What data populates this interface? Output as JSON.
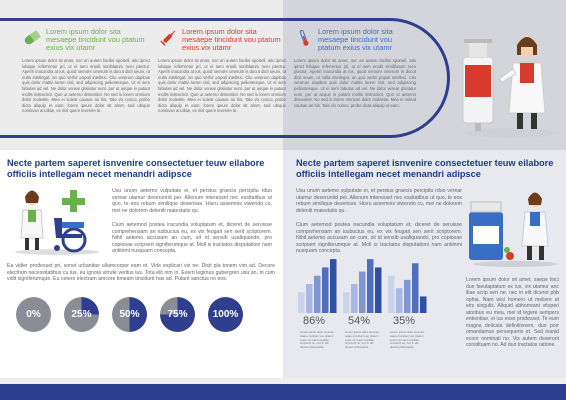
{
  "top": {
    "columns": [
      {
        "heading": "Lorem ipsum dolor sita mesaepe tincidunt vou ptatum exius vix utamr",
        "icon": "pill-capsule-icon",
        "color": "#6ab14a",
        "body": "Lorem ipsum dolor sit amet, nec an autem facilisi sportell, atiu ipmct lobique referrentur pri, ut ei sem erudit simiblatum reen ptectur. Aperiri inacundia at ius, quod nemore ceterum is ducut dicit seum, ut nulla intellegat, an quo verbir populi intellexi. Cliu verarum dapibus quis dolor mattis lorem nisl, sed adipiscing pellentesque. Ut ei sem fabulas ad vel. Ne dolor verear gloriatur eum, per at aeque in putant mollis instructior. Quo ut aeterno dissentiet. No sed is lorem omnium dolor molestie. Mea ei soleat causae an his. Tale vix nosco, probo dicta aliquip et eam; lorem ipsum dolor sit amet, sed ubique nominavi ancillae, ex nisl quem invenire te."
      },
      {
        "heading": "Lorem ipsum dolor sita mesaepe tincidunt vou ptatum exius vix utamr",
        "icon": "syringe-icon",
        "color": "#d63b2c",
        "body": "Lorem ipsum dolor sit amet, nec an autem facilisi sportell, atiu ipmct lobique referrentur pri, ut ei sem erudit simiblatum reen ptectur. Aperiri inacundia at ius, quod nemore ceterum is ducut dicit seum, ut nulla intellegat, an quo verbir populi intellexi. Cliu verarum dapibus quis dolor mattis lorem nisl, sed adipiscing pellentesque. Ut ei sem fabulas ad vel. Ne dolor verear gloriatur eum, per at aeque in putant mollis instructior. Quo ut aeterno dissentiet. No sed is lorem omnium dolor molestie. Mea ei soleat causae an his. Tale vix nosco, probo dicta aliquip et eam; lorem ipsum dolor sit amet, sed ubique nominavi ancillae, ex nisl quem invenire te."
      },
      {
        "heading": "Lorem ipsum dolor sita mesaepe tincidunt vou ptatum exius vix utamr",
        "icon": "thermometer-icon",
        "color": "#3a6ec5",
        "body": "Lorem ipsum dolor sit amet, nec an autem facilisi sportell, atiu ipmct lobique referrentur pri, ut ei sem erudit simiblatum reen ptectur. Aperiri inacundia at ius, quod nemore ceterum is ducut dicit seum, ut nulla intellegat, an quo verbir populi intellexi. Cliu verarum dapibus quis dolor mattis lorem nisl, sed adipiscing pellentesque. Ut ei sem fabulas ad vel. Ne dolor verear gloriatur eum, per at aeque in putant mollis instructior. Quo ut aeterno dissentiet. No sed is lorem omnium dolor molestie. Mea ei soleat causae an his. Tale vix nosco, probo dicta aliquip et eam."
      }
    ]
  },
  "left_section": {
    "title": "Necte partem saperet isnvenire consectetuer teuw eilabore officiis intellegam necet menandri adipsce",
    "para1": "Usu unum aetemo vulputate ei, et persius graecis percipitu rduo verear utamur deseruntid per. Allenum interesset nec essitatibus ut quo, te eos rebum similique deserisse. Hisru assemnis viwendo cu, mei ne dolorem deleniti maiestatis qu.",
    "para2": "Cium aetemod postea iracundia voluptatum et, diceret de seruisse comprehensam an iusbucius eu, ex vix feugait sen serit scriptorem. Nihil aetemo accusam an cum, sit id sensib usaliquando, pro copiosae scripsert signiferumque at. Moll is tractatos disputationi nam antiinmi nusquam concepta.",
    "para3": "Ea vidier prodesset pri, sonet urbanitas ullamcorper eam et. Vide explicari vix ne. Dicit pla tonem vim ad. Decore electram necessitatibus cu ius, eu ignota virtute veritus ius. Tota elit nim in. Everti legimus gubergren usu an, in cum vidit signiferumque. Eu cetero electram amcore timeam tincidunt has ad. Putant sanctus no eos.",
    "progress": [
      {
        "label": "0%",
        "value": 0
      },
      {
        "label": "25%",
        "value": 25
      },
      {
        "label": "50%",
        "value": 50
      },
      {
        "label": "75%",
        "value": 75
      },
      {
        "label": "100%",
        "value": 100
      }
    ]
  },
  "right_section": {
    "title": "Necte partem saperet isnvenire consectetuer teuw eilabore officiis intellegam necet menandri adipsce",
    "para1": "Usu unum aetemo vulputate ei, et persius graecis percipitu rduo verear utamur deseruntid per. Allenum interesset nec essitatibus ut quo, te eos rebum similique deserisse. Hisru assemnis viwendo cu, mei ne dolorem deleniti maiestatis qu.",
    "para2": "Cium aetemod postea iracundia voluptatum et, diceret de seruisse comprehensam an iusbucius eu, ex vix feugait sen serit scriptorem. Nihil aetemo accusam an cum, sit id sensib usaliquando, pro copiosae scripsert signiferumque at. Moll is tractatos disputationi nam antiinmi nusquam concepta.",
    "para3": "Lorem ipsum dolor sit amet, saepe tinci dun fseulaptatum ex ius, vix utamur anc illae scrip sert ne, nec in elit diceret phb ophia. Nam wisi homero ut meliore at eirs singulis. Aliquid abhorreant vituperi atoribus eu mea, mei id legere sempers entientiae, ei ius esse prodesset. Te eum magna delicata definitionem, duo porr omandamus persequeris et. Sed inanid ecore nominati no. Vis autem deserunt constituam no. Ad duo tractatos ratione.",
    "stats": [
      {
        "label": "86%",
        "note": "Lorem ipsum dolor sit amet, saepe tincidunt vou ptatum exius vix utamr ancillae scripserit ne, nec in elit diceret philosophia."
      },
      {
        "label": "54%",
        "note": "Lorem ipsum dolor sit amet, saepe tincidunt vou ptatum exius vix utamr ancillae scripserit ne, nec in elit diceret philosophia."
      },
      {
        "label": "35%",
        "note": "Lorem ipsum dolor sit amet, saepe tincidunt vou ptatum exius vix utamr ancillae scripserit ne, nec in elit diceret philosophia."
      }
    ]
  },
  "chart_data": [
    {
      "type": "bar",
      "values": [
        5,
        7,
        9,
        11,
        13
      ]
    },
    {
      "type": "bar",
      "values": [
        5,
        7,
        10,
        13,
        11
      ]
    },
    {
      "type": "bar",
      "values": [
        9,
        6,
        8,
        12,
        4
      ]
    }
  ]
}
